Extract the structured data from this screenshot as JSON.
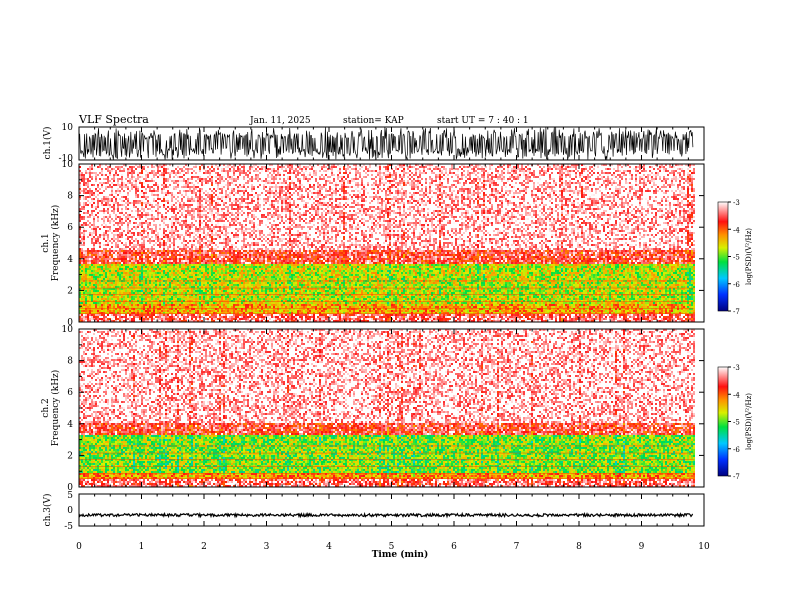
{
  "header": {
    "title": "VLF Spectra",
    "date": "Jan. 11, 2025",
    "station": "station= KAP",
    "start": "start  UT =   7 : 40 : 1"
  },
  "chart_data": [
    {
      "type": "line",
      "name": "ch1-waveform",
      "ylabel": "ch.1(V)",
      "ylim": [
        -10,
        10
      ],
      "y_ticks": [
        "10",
        "-10"
      ],
      "x_range_min": [
        0,
        9.83
      ]
    },
    {
      "type": "heatmap",
      "name": "ch1-spectrogram",
      "ylabel_1": "ch.1",
      "ylabel_2": "Frequency (kHz)",
      "ylim": [
        0,
        10
      ],
      "y_ticks": [
        "0",
        "2",
        "4",
        "6",
        "8",
        "10"
      ],
      "x_range_min": [
        0,
        9.83
      ],
      "colorbar": {
        "label": "log(PSD)(V²/Hz)",
        "ticks": [
          "-3",
          "-4",
          "-5",
          "-6",
          "-7"
        ],
        "range": [
          -7,
          -3
        ]
      },
      "bands_khz": [
        {
          "from": 0.0,
          "to": 0.6,
          "level": -3.4
        },
        {
          "from": 0.6,
          "to": 1.2,
          "level": -4.3
        },
        {
          "from": 1.2,
          "to": 3.7,
          "level": -4.7
        },
        {
          "from": 3.7,
          "to": 4.6,
          "level": -3.6
        },
        {
          "from": 4.6,
          "to": 10.0,
          "level": -3.1
        }
      ]
    },
    {
      "type": "heatmap",
      "name": "ch2-spectrogram",
      "ylabel_1": "ch.2",
      "ylabel_2": "Frequency (kHz)",
      "ylim": [
        0,
        10
      ],
      "y_ticks": [
        "0",
        "2",
        "4",
        "6",
        "8",
        "10"
      ],
      "x_range_min": [
        0,
        9.83
      ],
      "colorbar": {
        "label": "log(PSD)(V²/Hz)",
        "ticks": [
          "-3",
          "-4",
          "-5",
          "-6",
          "-7"
        ],
        "range": [
          -7,
          -3
        ]
      },
      "bands_khz": [
        {
          "from": 0.0,
          "to": 0.6,
          "level": -3.4
        },
        {
          "from": 0.6,
          "to": 1.0,
          "level": -4.2
        },
        {
          "from": 1.0,
          "to": 3.3,
          "level": -4.9
        },
        {
          "from": 3.3,
          "to": 4.1,
          "level": -3.6
        },
        {
          "from": 4.1,
          "to": 10.0,
          "level": -3.1
        }
      ]
    },
    {
      "type": "line",
      "name": "ch3-waveform",
      "ylabel": "ch.3(V)",
      "ylim": [
        -5,
        5
      ],
      "y_ticks": [
        "5",
        "0",
        "-5"
      ],
      "x_range_min": [
        0,
        9.83
      ],
      "approx_level": -1.6
    }
  ],
  "xaxis": {
    "label": "Time (min)",
    "ticks": [
      "0",
      "1",
      "2",
      "3",
      "4",
      "5",
      "6",
      "7",
      "8",
      "9",
      "10"
    ],
    "range": [
      0,
      10
    ]
  }
}
